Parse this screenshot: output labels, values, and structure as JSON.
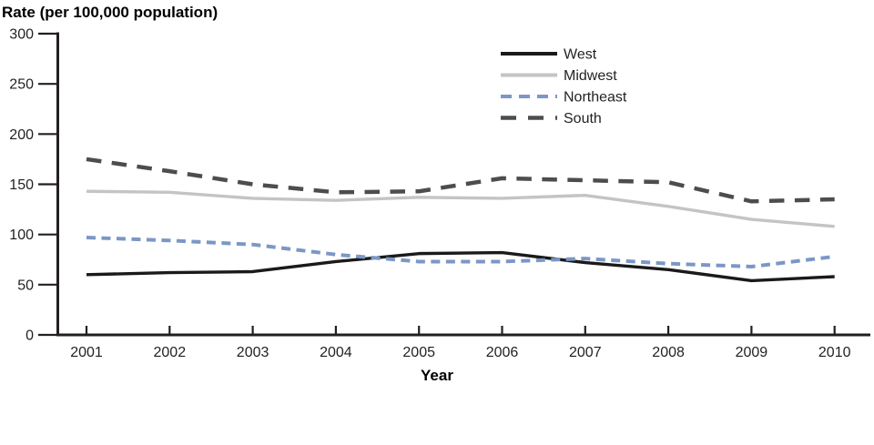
{
  "chart_data": {
    "type": "line",
    "title": "Rate (per 100,000 population)",
    "ylabel": "Rate (per 100,000 population)",
    "xlabel": "Year",
    "x": [
      2001,
      2002,
      2003,
      2004,
      2005,
      2006,
      2007,
      2008,
      2009,
      2010
    ],
    "series": [
      {
        "name": "West",
        "color": "#1a1a1a",
        "dash": "solid",
        "values": [
          60,
          62,
          63,
          73,
          81,
          82,
          72,
          65,
          54,
          58
        ]
      },
      {
        "name": "Midwest",
        "color": "#c4c4c6",
        "dash": "solid",
        "values": [
          143,
          142,
          136,
          134,
          137,
          136,
          139,
          128,
          115,
          108
        ]
      },
      {
        "name": "Northeast",
        "color": "#7b97c6",
        "dash": "short-dash",
        "values": [
          97,
          94,
          90,
          80,
          73,
          73,
          76,
          71,
          68,
          78
        ]
      },
      {
        "name": "South",
        "color": "#4d4d4f",
        "dash": "long-dash",
        "values": [
          175,
          163,
          150,
          142,
          143,
          156,
          154,
          152,
          133,
          135
        ]
      }
    ],
    "ylim": [
      0,
      300
    ],
    "yticks": [
      0,
      50,
      100,
      150,
      200,
      250,
      300
    ],
    "xticks": [
      "2001",
      "2002",
      "2003",
      "2004",
      "2005",
      "2006",
      "2007",
      "2008",
      "2009",
      "2010"
    ],
    "grid": false,
    "legend_position": "top-center",
    "legend_entries": [
      "West",
      "Midwest",
      "Northeast",
      "South"
    ],
    "axis_color": "#231f20",
    "text_color": "#231f20"
  }
}
